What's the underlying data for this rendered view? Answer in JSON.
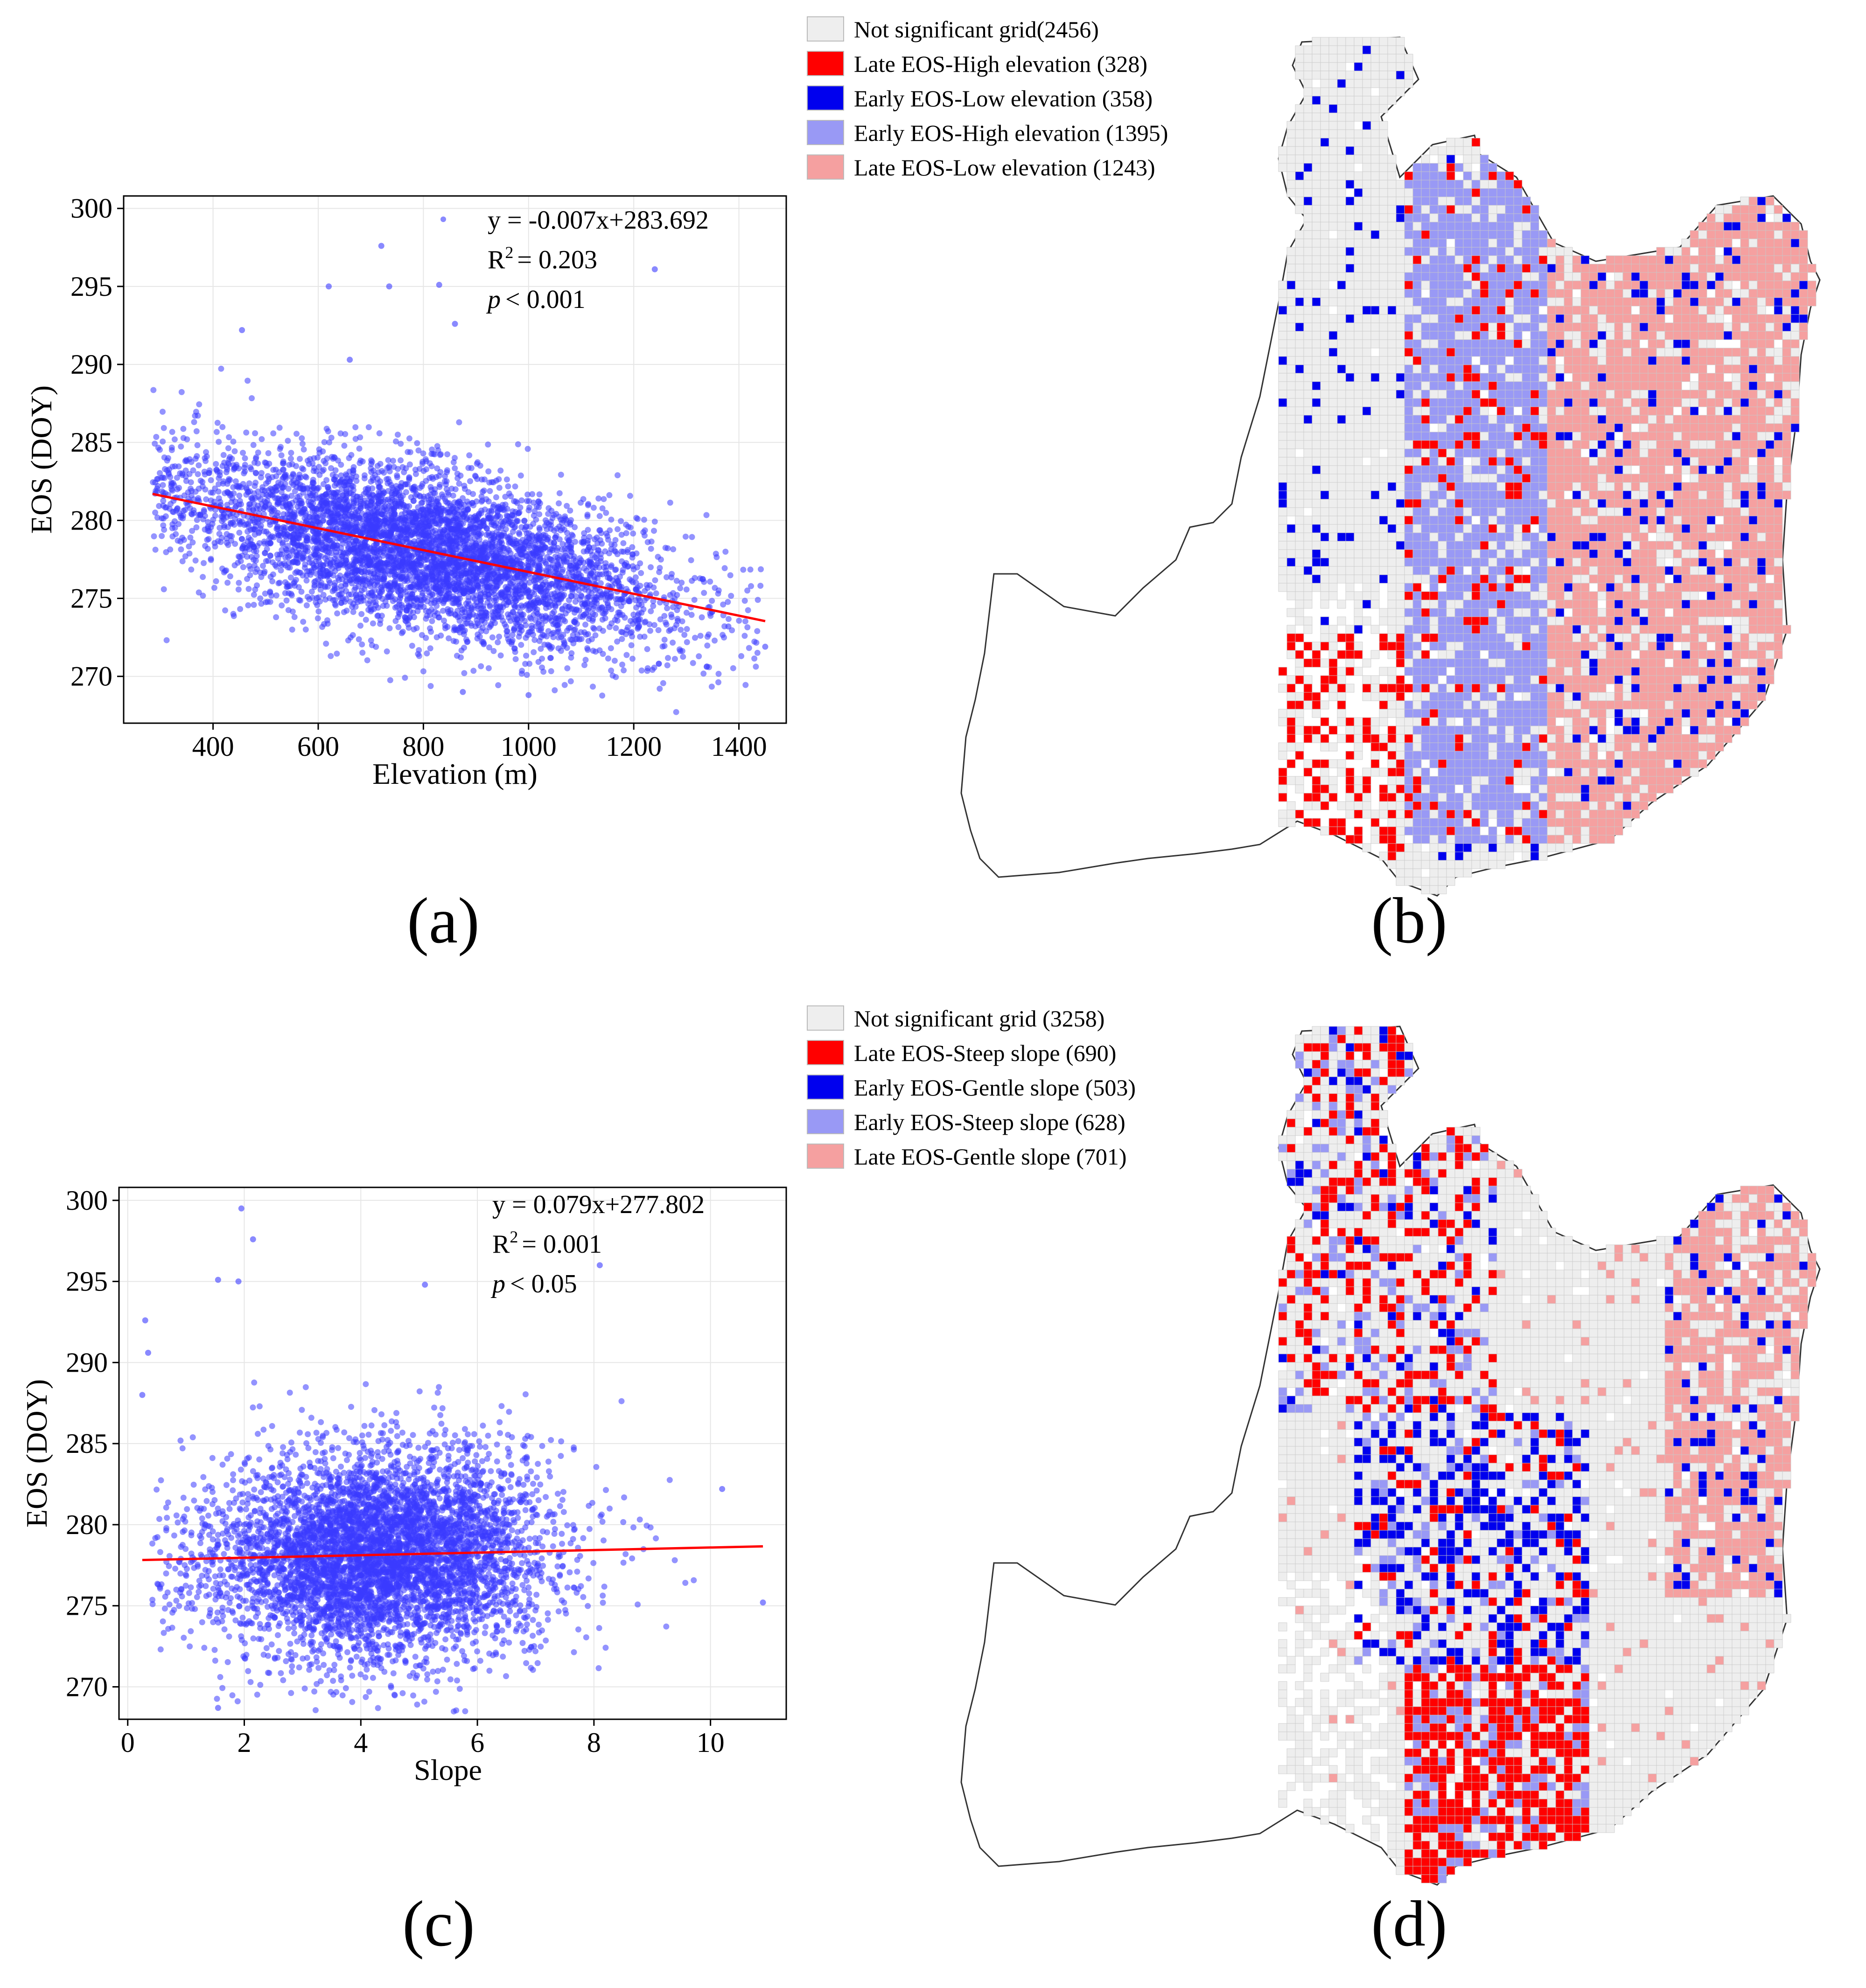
{
  "figure": {
    "panel_labels": [
      "(a)",
      "(b)",
      "(c)",
      "(d)"
    ]
  },
  "colors": {
    "scatter_point": "#3a3aff",
    "fit_line": "#ff0000",
    "not_significant": "#eeeeee",
    "late_strong": "#ff0000",
    "early_strong": "#0000ee",
    "early_light": "#9999f5",
    "late_light": "#f5a0a0",
    "boundary": "#333333"
  },
  "icons": {
    "legend_swatch": "legend-swatch-icon"
  },
  "chart_data": [
    {
      "id": "a",
      "type": "scatter",
      "xlabel": "Elevation (m)",
      "ylabel": "EOS (DOY)",
      "xlim": [
        230,
        1490
      ],
      "ylim": [
        267,
        300.8
      ],
      "xticks": [
        400,
        600,
        800,
        1000,
        1200,
        1400
      ],
      "yticks": [
        270,
        275,
        280,
        285,
        290,
        295,
        300
      ],
      "equation": "y = -0.007x+283.692",
      "r2_label": "R",
      "r2_sup": "2",
      "r2_value": "= 0.203",
      "p_symbol": "p",
      "p_value": "< 0.001",
      "fit": {
        "slope": -0.007,
        "intercept": 283.692,
        "x_range": [
          285,
          1450
        ]
      },
      "point_cloud": {
        "n": 5200,
        "x_mean": 800,
        "x_sd": 230,
        "x_min": 285,
        "x_max": 1450,
        "y_resid_sd": 2.6,
        "seed": 7
      },
      "outliers": [
        {
          "x": 720,
          "y": 297.6
        },
        {
          "x": 735,
          "y": 295.0
        },
        {
          "x": 830,
          "y": 295.1
        },
        {
          "x": 860,
          "y": 292.6
        },
        {
          "x": 1240,
          "y": 296.1
        },
        {
          "x": 660,
          "y": 290.3
        },
        {
          "x": 455,
          "y": 292.2
        },
        {
          "x": 620,
          "y": 295.0
        },
        {
          "x": 1000,
          "y": 268.8
        },
        {
          "x": 875,
          "y": 269.0
        },
        {
          "x": 1450,
          "y": 271.9
        },
        {
          "x": 1380,
          "y": 273.2
        }
      ]
    },
    {
      "id": "c",
      "type": "scatter",
      "xlabel": "Slope",
      "ylabel": "EOS (DOY)",
      "xlim": [
        -0.15,
        11.3
      ],
      "ylim": [
        268,
        300.8
      ],
      "xticks": [
        0,
        2,
        4,
        6,
        8,
        10
      ],
      "yticks": [
        270,
        275,
        280,
        285,
        290,
        295,
        300
      ],
      "equation": "y = 0.079x+277.802",
      "r2_label": "R",
      "r2_sup": "2",
      "r2_value": "= 0.001",
      "p_symbol": "p",
      "p_value": "< 0.05",
      "fit": {
        "slope": 0.079,
        "intercept": 277.802,
        "x_range": [
          0.25,
          10.9
        ]
      },
      "point_cloud": {
        "n": 5200,
        "x_mean": 4.3,
        "x_sd": 1.45,
        "x_min": 0.4,
        "x_max": 9.8,
        "y_resid_sd": 3.2,
        "seed": 11
      },
      "outliers": [
        {
          "x": 1.95,
          "y": 299.5
        },
        {
          "x": 2.15,
          "y": 297.6
        },
        {
          "x": 1.55,
          "y": 295.1
        },
        {
          "x": 1.9,
          "y": 295.0
        },
        {
          "x": 5.1,
          "y": 294.8
        },
        {
          "x": 8.1,
          "y": 296.0
        },
        {
          "x": 0.3,
          "y": 292.6
        },
        {
          "x": 0.35,
          "y": 290.6
        },
        {
          "x": 0.25,
          "y": 288.0
        },
        {
          "x": 10.9,
          "y": 275.2
        },
        {
          "x": 10.2,
          "y": 282.2
        },
        {
          "x": 1.55,
          "y": 268.7
        }
      ]
    },
    {
      "id": "b",
      "type": "heatmap",
      "legend": [
        {
          "label": "Not significant grid(2456)",
          "color": "#eeeeee"
        },
        {
          "label": "Late EOS-High elevation (328)",
          "color": "#ff0000"
        },
        {
          "label": "Early EOS-Low elevation (358)",
          "color": "#0000ee"
        },
        {
          "label": "Early EOS-High elevation (1395)",
          "color": "#9999f5"
        },
        {
          "label": "Late EOS-Low elevation (1243)",
          "color": "#f5a0a0"
        }
      ]
    },
    {
      "id": "d",
      "type": "heatmap",
      "legend": [
        {
          "label": "Not significant grid (3258)",
          "color": "#eeeeee"
        },
        {
          "label": "Late EOS-Steep slope (690)",
          "color": "#ff0000"
        },
        {
          "label": "Early EOS-Gentle slope (503)",
          "color": "#0000ee"
        },
        {
          "label": "Early EOS-Steep slope (628)",
          "color": "#9999f5"
        },
        {
          "label": "Late EOS-Gentle slope (701)",
          "color": "#f5a0a0"
        }
      ]
    }
  ]
}
